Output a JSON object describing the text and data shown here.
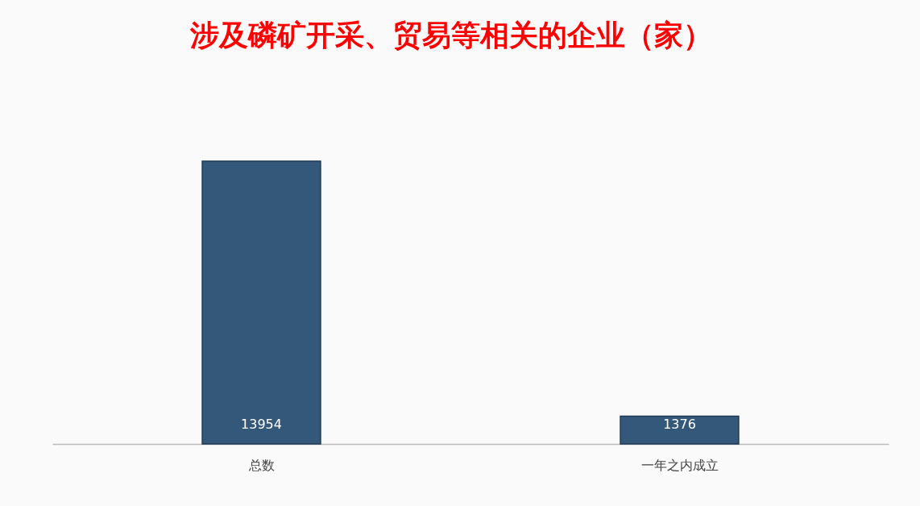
{
  "chart_data": {
    "type": "bar",
    "title": "涉及磷矿开采、贸易等相关的企业（家）",
    "categories": [
      "总数",
      "一年之内成立"
    ],
    "values": [
      13954,
      1376
    ],
    "color": "#34587a",
    "data_labels": true
  }
}
